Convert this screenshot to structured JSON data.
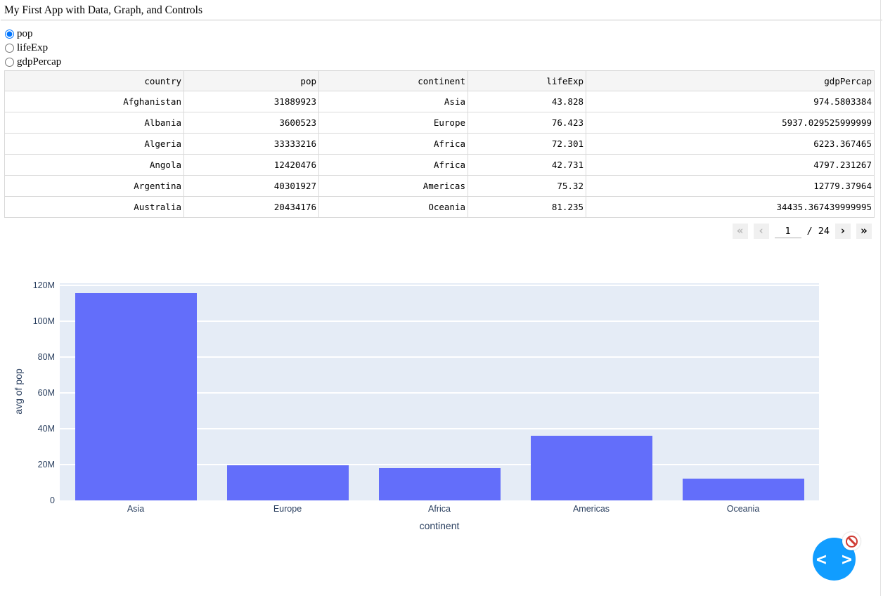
{
  "page": {
    "title": "My First App with Data, Graph, and Controls"
  },
  "controls": {
    "group_name": "metric",
    "options": [
      {
        "label": "pop",
        "selected": true
      },
      {
        "label": "lifeExp",
        "selected": false
      },
      {
        "label": "gdpPercap",
        "selected": false
      }
    ]
  },
  "table": {
    "columns": [
      "country",
      "pop",
      "continent",
      "lifeExp",
      "gdpPercap"
    ],
    "rows": [
      [
        "Afghanistan",
        "31889923",
        "Asia",
        "43.828",
        "974.5803384"
      ],
      [
        "Albania",
        "3600523",
        "Europe",
        "76.423",
        "5937.029525999999"
      ],
      [
        "Algeria",
        "33333216",
        "Africa",
        "72.301",
        "6223.367465"
      ],
      [
        "Angola",
        "12420476",
        "Africa",
        "42.731",
        "4797.231267"
      ],
      [
        "Argentina",
        "40301927",
        "Americas",
        "75.32",
        "12779.37964"
      ],
      [
        "Australia",
        "20434176",
        "Oceania",
        "81.235",
        "34435.367439999995"
      ]
    ]
  },
  "pagination": {
    "first_label": "«",
    "previous_label": "‹",
    "current_page": "1",
    "separator": "/",
    "total_pages": "24",
    "next_label": "›",
    "last_label": "»"
  },
  "chart_data": {
    "type": "bar",
    "categories": [
      "Asia",
      "Europe",
      "Africa",
      "Americas",
      "Oceania"
    ],
    "values": [
      115513752,
      19536618,
      17875763,
      35954847,
      12274974
    ],
    "title": "",
    "xlabel": "continent",
    "ylabel": "avg of pop",
    "ylim": [
      0,
      120000000
    ],
    "grid": true,
    "legend": "none",
    "yticks": [
      {
        "value": 0,
        "label": "0"
      },
      {
        "value": 20000000,
        "label": "20M"
      },
      {
        "value": 40000000,
        "label": "40M"
      },
      {
        "value": 60000000,
        "label": "60M"
      },
      {
        "value": 80000000,
        "label": "80M"
      },
      {
        "value": 100000000,
        "label": "100M"
      },
      {
        "value": 120000000,
        "label": "120M"
      }
    ],
    "colors": {
      "bar": "#636efa",
      "plot_background": "#e5ecf6",
      "gridline": "#ffffff",
      "axis_text": "#2a3f5f"
    }
  },
  "debug_menu": {
    "toggle_icon": "< >",
    "error_icon": "no-entry-icon",
    "button_color": "#119dff",
    "error_color": "#cf3a32"
  }
}
